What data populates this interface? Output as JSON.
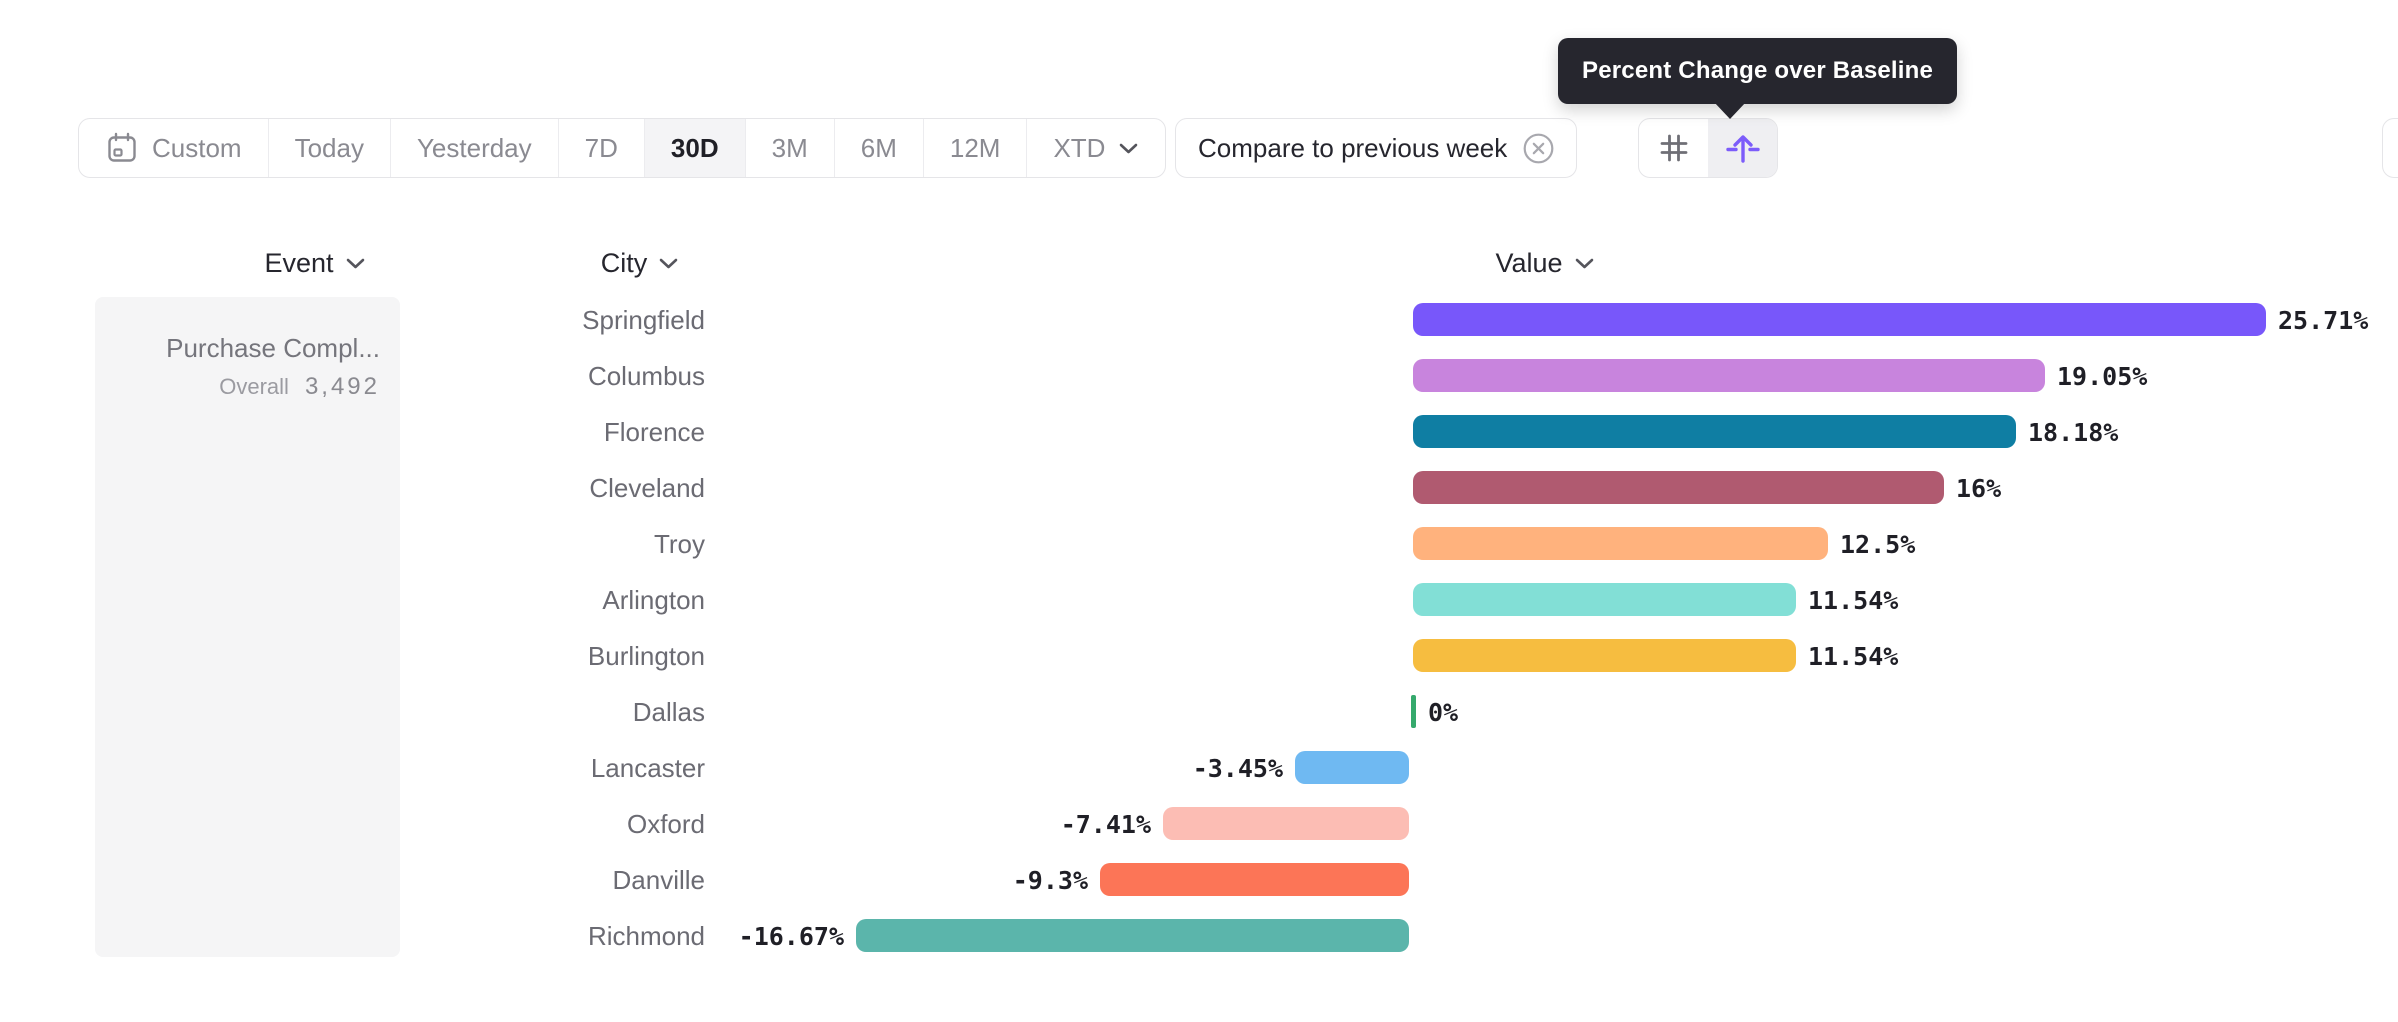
{
  "tooltip": {
    "text": "Percent Change over Baseline"
  },
  "toolbar": {
    "date_ranges": [
      {
        "label": "Custom",
        "icon": "calendar",
        "selected": false
      },
      {
        "label": "Today",
        "selected": false
      },
      {
        "label": "Yesterday",
        "selected": false
      },
      {
        "label": "7D",
        "selected": false
      },
      {
        "label": "30D",
        "selected": true
      },
      {
        "label": "3M",
        "selected": false
      },
      {
        "label": "6M",
        "selected": false
      },
      {
        "label": "12M",
        "selected": false
      },
      {
        "label": "XTD",
        "chevron": true,
        "selected": false
      }
    ],
    "compare_chip": {
      "label": "Compare to previous week",
      "close_icon": "circle-x"
    },
    "view_toggles": [
      {
        "name": "grid-values",
        "icon": "hash-icon",
        "selected": false
      },
      {
        "name": "percent-change-baseline",
        "icon": "baseline-arrow-icon",
        "selected": true
      }
    ]
  },
  "column_headers": [
    {
      "label": "Event"
    },
    {
      "label": "City"
    },
    {
      "label": "Value"
    }
  ],
  "event_card": {
    "title": "Purchase Compl...",
    "overall_label": "Overall",
    "overall_value": "3,492"
  },
  "chart_data": {
    "type": "bar",
    "orientation": "horizontal",
    "metric": "Percent Change over Baseline",
    "categories": [
      "Springfield",
      "Columbus",
      "Florence",
      "Cleveland",
      "Troy",
      "Arlington",
      "Burlington",
      "Dallas",
      "Lancaster",
      "Oxford",
      "Danville",
      "Richmond"
    ],
    "values": [
      25.71,
      19.05,
      18.18,
      16,
      12.5,
      11.54,
      11.54,
      0,
      -3.45,
      -7.41,
      -9.3,
      -16.67
    ],
    "value_labels": [
      "25.71%",
      "19.05%",
      "18.18%",
      "16%",
      "12.5%",
      "11.54%",
      "11.54%",
      "0%",
      "-3.45%",
      "-7.41%",
      "-9.3%",
      "-16.67%"
    ],
    "bar_colors": [
      "#7857FA",
      "#C884DD",
      "#0F7EA3",
      "#B05A70",
      "#FFB27D",
      "#82DFD6",
      "#F6BD40",
      "#35A96C",
      "#6FB9F2",
      "#FCBDB4",
      "#FC7557",
      "#5BB5AB"
    ],
    "xlim": [
      -16.67,
      25.71
    ],
    "baseline": 0,
    "grid": false,
    "legend": false
  },
  "colors": {
    "accent_purple": "#7C5CFA",
    "tooltip_bg": "#26262E",
    "toolbar_border": "#E5E5E8",
    "toolbar_text": "#8A8A91",
    "selected_text": "#1F1F26",
    "selected_bg": "#F4F4F6",
    "card_bg": "#F5F5F6",
    "city_label": "#6B6B73",
    "zero_line_green": "#35A96C"
  }
}
